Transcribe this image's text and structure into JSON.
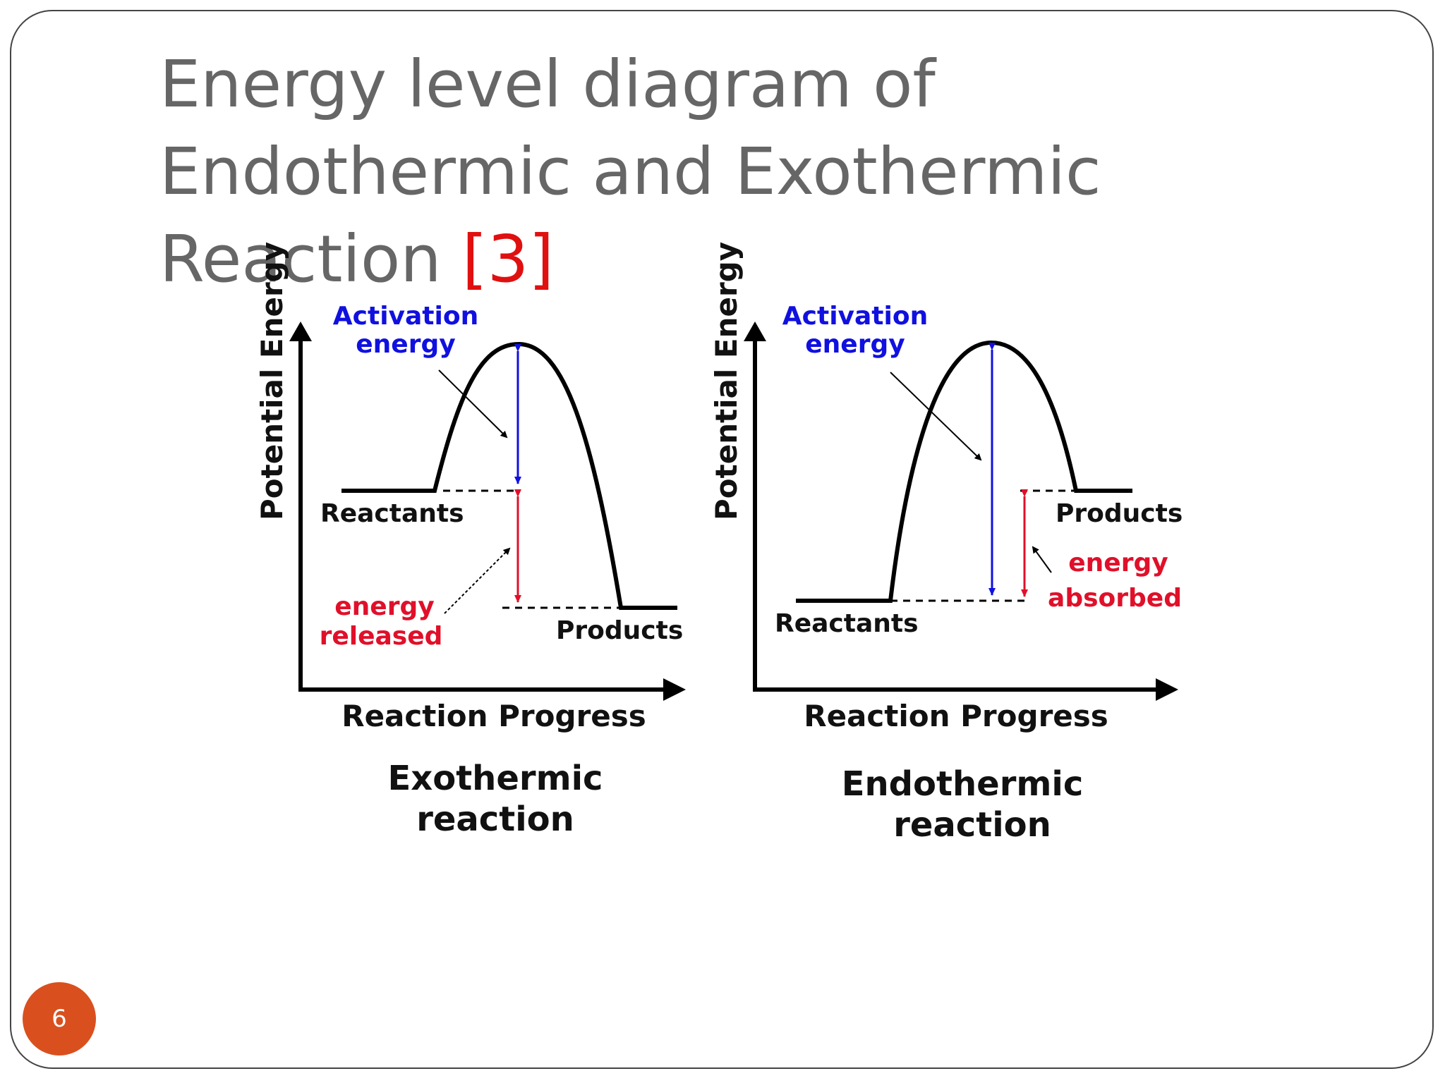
{
  "slide": {
    "title_main": "Energy level diagram of Endothermic and Exothermic Reaction ",
    "title_ref": "[3]",
    "number": "6"
  },
  "colors": {
    "title": "#666666",
    "reference": "#e01010",
    "badge": "#d9501e",
    "activation": "#1010e0",
    "energy_change": "#e0102a",
    "curve": "#000000"
  },
  "diagrams": {
    "exothermic": {
      "y_axis": "Potential Energy",
      "x_axis": "Reaction Progress",
      "activation_line1": "Activation",
      "activation_line2": "energy",
      "reactants": "Reactants",
      "products": "Products",
      "change_line1": "energy",
      "change_line2": "released",
      "caption_line1": "Exothermic",
      "caption_line2": "reaction"
    },
    "endothermic": {
      "y_axis": "Potential Energy",
      "x_axis": "Reaction Progress",
      "activation_line1": "Activation",
      "activation_line2": "energy",
      "reactants": "Reactants",
      "products": "Products",
      "change_line1": "energy",
      "change_line2": "absorbed",
      "caption_line1": "Endothermic",
      "caption_line2": "reaction"
    }
  }
}
